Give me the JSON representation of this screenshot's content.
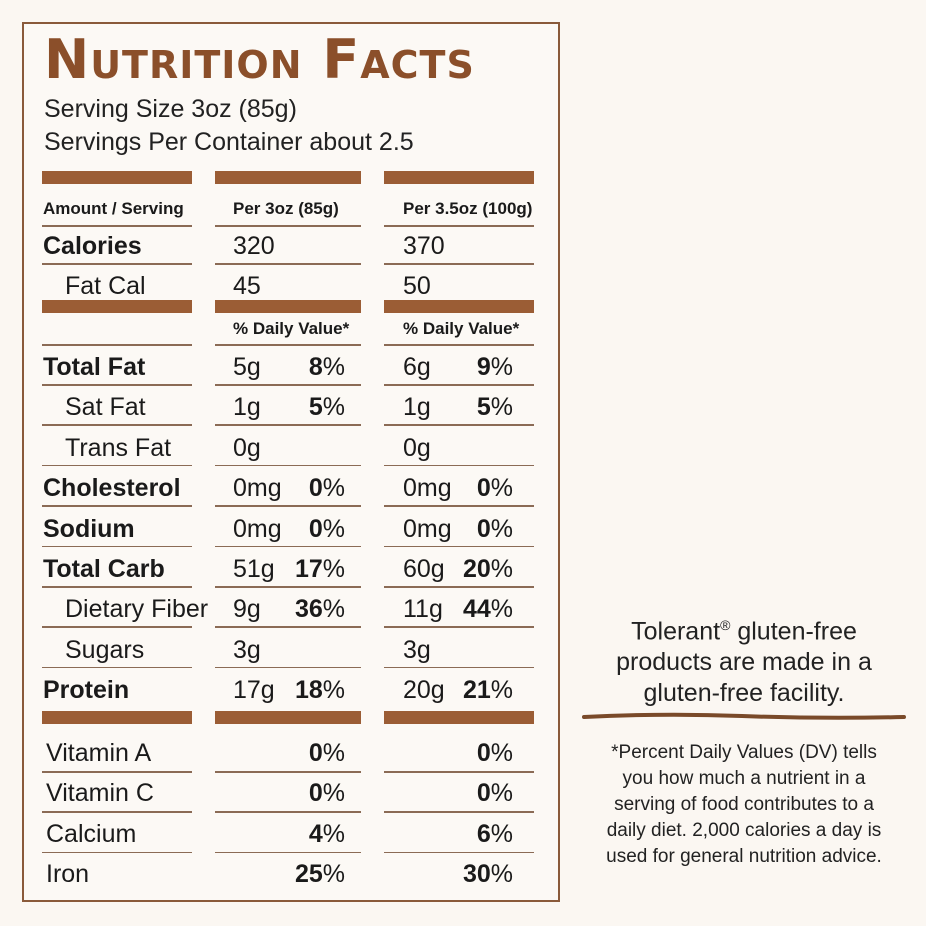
{
  "title": "Nutrition Facts",
  "serving_size": "Serving Size 3oz (85g)",
  "servings_per_container": "Servings Per Container about 2.5",
  "headers": {
    "amount": "Amount / Serving",
    "col1": "Per 3oz (85g)",
    "col2": "Per 3.5oz (100g)",
    "dv1": "% Daily Value*",
    "dv2": "% Daily Value*"
  },
  "calories": {
    "label": "Calories",
    "v1": "320",
    "v2": "370"
  },
  "fat_cal": {
    "label": "Fat Cal",
    "v1": "45",
    "v2": "50"
  },
  "nutrients": [
    {
      "label": "Total Fat",
      "major": true,
      "indent": false,
      "amt1": "5g",
      "pct1": "8",
      "amt2": "6g",
      "pct2": "9"
    },
    {
      "label": "Sat Fat",
      "major": false,
      "indent": true,
      "amt1": "1g",
      "pct1": "5",
      "amt2": "1g",
      "pct2": "5"
    },
    {
      "label": "Trans Fat",
      "major": false,
      "indent": true,
      "amt1": "0g",
      "pct1": "",
      "amt2": "0g",
      "pct2": ""
    },
    {
      "label": "Cholesterol",
      "major": true,
      "indent": false,
      "amt1": "0mg",
      "pct1": "0",
      "amt2": "0mg",
      "pct2": "0"
    },
    {
      "label": "Sodium",
      "major": true,
      "indent": false,
      "amt1": "0mg",
      "pct1": "0",
      "amt2": "0mg",
      "pct2": "0"
    },
    {
      "label": "Total Carb",
      "major": true,
      "indent": false,
      "amt1": "51g",
      "pct1": "17",
      "amt2": "60g",
      "pct2": "20"
    },
    {
      "label": "Dietary Fiber",
      "major": false,
      "indent": true,
      "amt1": "9g",
      "pct1": "36",
      "amt2": "11g",
      "pct2": "44"
    },
    {
      "label": "Sugars",
      "major": false,
      "indent": true,
      "amt1": "3g",
      "pct1": "",
      "amt2": "3g",
      "pct2": ""
    },
    {
      "label": "Protein",
      "major": true,
      "indent": false,
      "amt1": "17g",
      "pct1": "18",
      "amt2": "20g",
      "pct2": "21"
    }
  ],
  "vitamins": [
    {
      "label": "Vitamin A",
      "pct1": "0",
      "pct2": "0"
    },
    {
      "label": "Vitamin C",
      "pct1": "0",
      "pct2": "0"
    },
    {
      "label": "Calcium",
      "pct1": "4",
      "pct2": "6"
    },
    {
      "label": "Iron",
      "pct1": "25",
      "pct2": "30"
    }
  ],
  "gluten_note": {
    "line1_brand": "Tolerant",
    "reg_mark": "®",
    "line1_rest": " gluten-free",
    "line2": "products are made in a",
    "line3": "gluten-free facility."
  },
  "dv_note": [
    "*Percent Daily Values (DV) tells",
    "you how much a nutrient in a",
    "serving of food contributes to a",
    "daily diet. 2,000 calories a day is",
    "used for general nutrition advice."
  ],
  "colors": {
    "accent": "#9b5d35",
    "title": "#8b4f2a",
    "background": "#fbf7f2"
  }
}
